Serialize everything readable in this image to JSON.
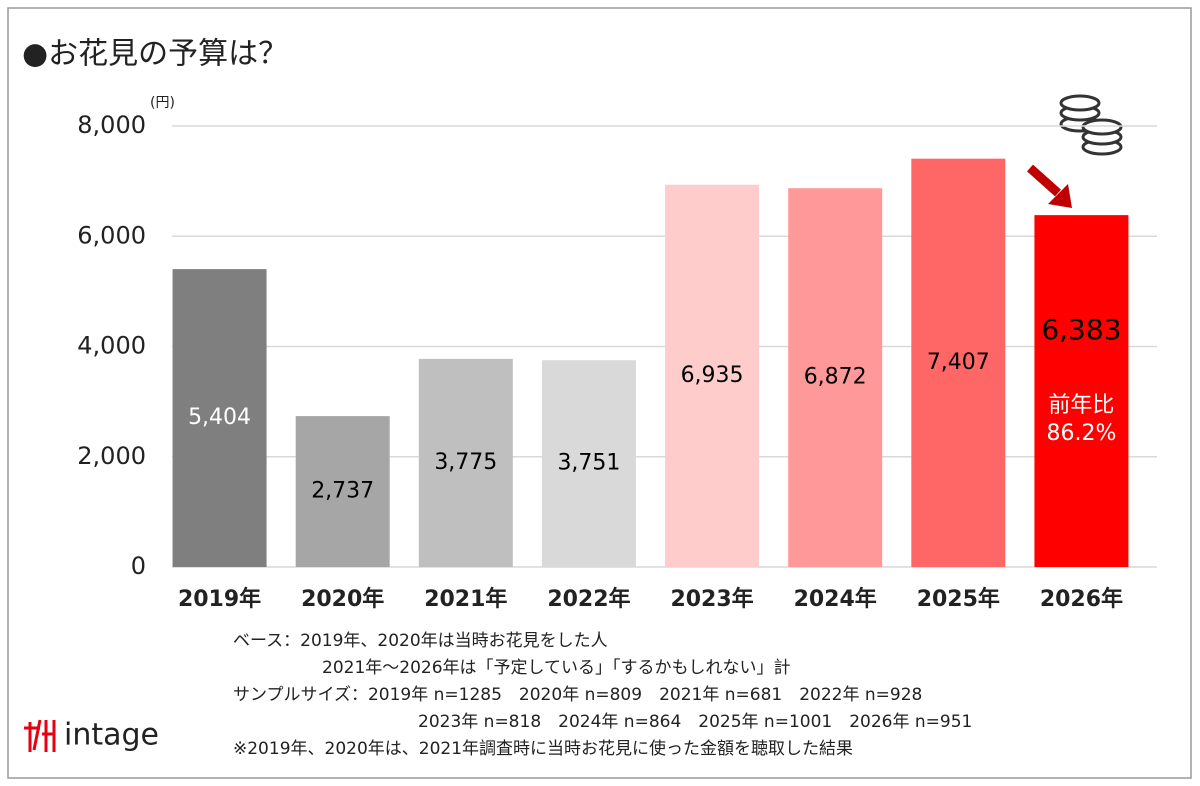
{
  "chart_data": {
    "type": "bar",
    "title": "●お花見の予算は？",
    "y_unit": "(円)",
    "categories": [
      "2019年",
      "2020年",
      "2021年",
      "2022年",
      "2023年",
      "2024年",
      "2025年",
      "2026年"
    ],
    "values": [
      5404,
      2737,
      3775,
      3751,
      6935,
      6872,
      7407,
      6383
    ],
    "value_labels": [
      "5,404",
      "2,737",
      "3,775",
      "3,751",
      "6,935",
      "6,872",
      "7,407",
      "6,383"
    ],
    "colors": [
      "#7f7f7f",
      "#a6a6a6",
      "#bfbfbf",
      "#d9d9d9",
      "#ffcccc",
      "#ff9999",
      "#ff6666",
      "#ff0000"
    ],
    "label_colors": [
      "#ffffff",
      "#000000",
      "#000000",
      "#000000",
      "#000000",
      "#000000",
      "#000000",
      "#000000"
    ],
    "ylim": [
      0,
      8000
    ],
    "yticks": [
      0,
      {
        "value": 2000,
        "label": "2,000"
      },
      {
        "value": 4000,
        "label": "4,000"
      },
      {
        "value": 6000,
        "label": "6,000"
      },
      {
        "value": 8000,
        "label": "8,000"
      }
    ],
    "grid": true,
    "annotation": [
      "前年比",
      "86.2%"
    ],
    "notes": [
      "ベース：2019年、2020年は当時お花見をした人",
      "2021年～2026年は「予定している」「するかもしれない」計",
      "サンプルサイズ：2019年 n=1285　2020年 n=809　2021年 n=681　2022年 n=928",
      "2023年 n=818　2024年 n=864　2025年 n=1001　2026年 n=951",
      "※2019年、2020年は、2021年調査時に当時お花見に使った金額を聴取した結果"
    ],
    "logo": "intage"
  }
}
